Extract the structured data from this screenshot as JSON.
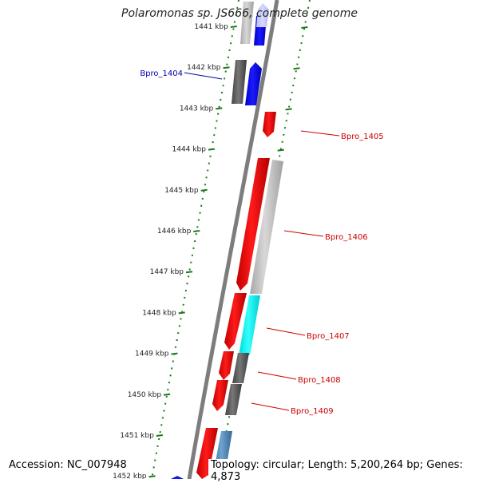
{
  "title": "Polaromonas sp. JS666, complete genome",
  "accession": "Accession: NC_007948",
  "summary": "Topology: circular; Length: 5,200,264 bp; Genes: 4,873",
  "colors": {
    "backbone": "#8a8a8a",
    "tick": "#1a7a1a",
    "forward_label": "#0000aa",
    "reverse_label": "#cc0000"
  },
  "ticks": [
    {
      "label": "1441 kbp"
    },
    {
      "label": "1442 kbp"
    },
    {
      "label": "1443 kbp"
    },
    {
      "label": "1444 kbp"
    },
    {
      "label": "1445 kbp"
    },
    {
      "label": "1446 kbp"
    },
    {
      "label": "1447 kbp"
    },
    {
      "label": "1448 kbp"
    },
    {
      "label": "1449 kbp"
    },
    {
      "label": "1450 kbp"
    },
    {
      "label": "1451 kbp"
    },
    {
      "label": "1452 kbp"
    }
  ],
  "gene_labels": [
    {
      "text": "Bpro_1404",
      "strand": "forward"
    },
    {
      "text": "Bpro_1405",
      "strand": "reverse"
    },
    {
      "text": "Bpro_1406",
      "strand": "reverse"
    },
    {
      "text": "Bpro_1407",
      "strand": "reverse"
    },
    {
      "text": "Bpro_1408",
      "strand": "reverse"
    },
    {
      "text": "Bpro_1409",
      "strand": "reverse"
    }
  ]
}
